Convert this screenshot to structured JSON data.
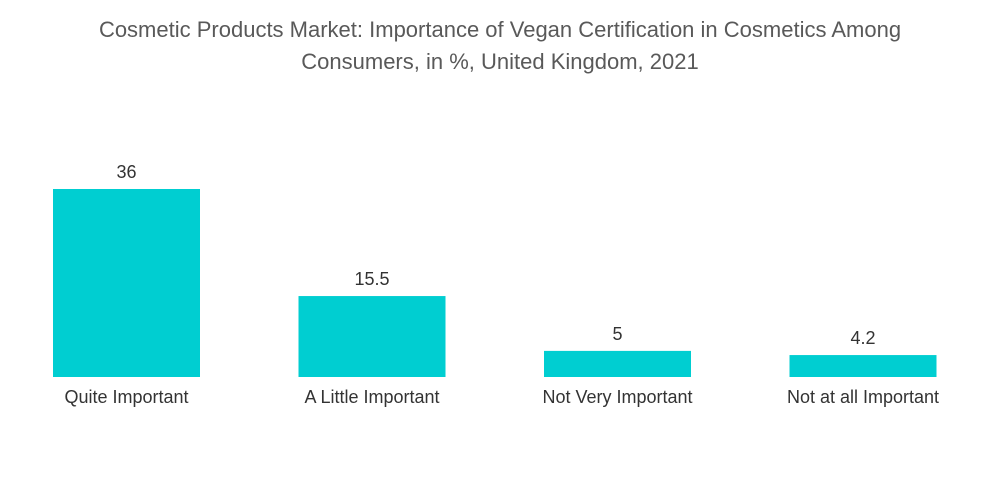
{
  "chart_data": {
    "type": "bar",
    "title_line1": "Cosmetic Products Market: Importance of Vegan Certification in Cosmetics Among",
    "title_line2": "Consumers, in %, United Kingdom, 2021",
    "categories": [
      "Quite Important",
      "A Little Important",
      "Not Very Important",
      "Not at all Important"
    ],
    "values": [
      36,
      15.5,
      5,
      4.2
    ],
    "value_labels": [
      "36",
      "15.5",
      "5",
      "4.2"
    ],
    "xlabel": "",
    "ylabel": "",
    "ylim": [
      0,
      36
    ],
    "grid": false,
    "legend": "none",
    "bar_color": "#00CED1"
  }
}
